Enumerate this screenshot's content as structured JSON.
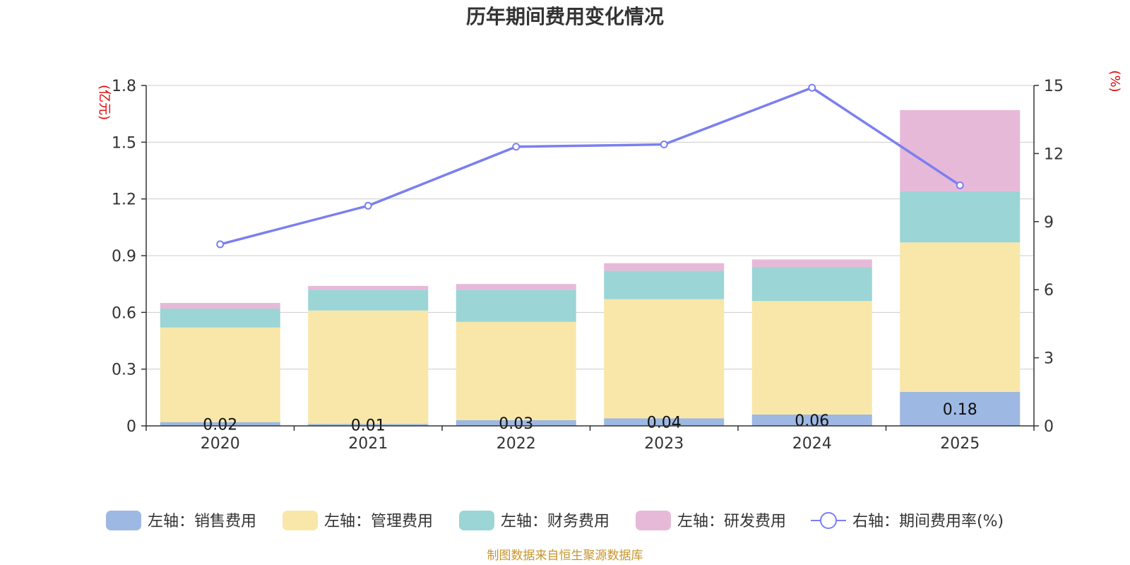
{
  "chart_data": {
    "type": "bar",
    "title": "历年期间费用变化情况",
    "categories": [
      "2020",
      "2021",
      "2022",
      "2023",
      "2024",
      "2025"
    ],
    "series": [
      {
        "name": "左轴：销售费用",
        "axis": "left",
        "kind": "bar",
        "color": "#9db8e2",
        "values": [
          0.02,
          0.01,
          0.03,
          0.04,
          0.06,
          0.18
        ],
        "labels": [
          "0.02",
          "0.01",
          "0.03",
          "0.04",
          "0.06",
          "0.18"
        ]
      },
      {
        "name": "左轴：管理费用",
        "axis": "left",
        "kind": "bar",
        "color": "#f8e7a8",
        "values": [
          0.5,
          0.6,
          0.52,
          0.63,
          0.6,
          0.79
        ]
      },
      {
        "name": "左轴：财务费用",
        "axis": "left",
        "kind": "bar",
        "color": "#9bd5d6",
        "values": [
          0.1,
          0.11,
          0.17,
          0.15,
          0.18,
          0.27
        ]
      },
      {
        "name": "左轴：研发费用",
        "axis": "left",
        "kind": "bar",
        "color": "#e7b9d8",
        "values": [
          0.03,
          0.02,
          0.03,
          0.04,
          0.04,
          0.43
        ]
      },
      {
        "name": "右轴：期间费用率(%)",
        "axis": "right",
        "kind": "line",
        "color": "#7b7ff0",
        "values": [
          8.0,
          9.7,
          12.3,
          12.4,
          14.9,
          10.6
        ]
      }
    ],
    "left_axis": {
      "unit": "(亿元)",
      "ylim": [
        0,
        1.8
      ],
      "ticks": [
        "0",
        "0.3",
        "0.6",
        "0.9",
        "1.2",
        "1.5",
        "1.8"
      ]
    },
    "right_axis": {
      "unit": "(%)",
      "ylim": [
        0,
        15
      ],
      "ticks": [
        "0",
        "3",
        "6",
        "9",
        "12",
        "15"
      ]
    },
    "legend_position": "bottom",
    "source_note": "制图数据来自恒生聚源数据库"
  }
}
